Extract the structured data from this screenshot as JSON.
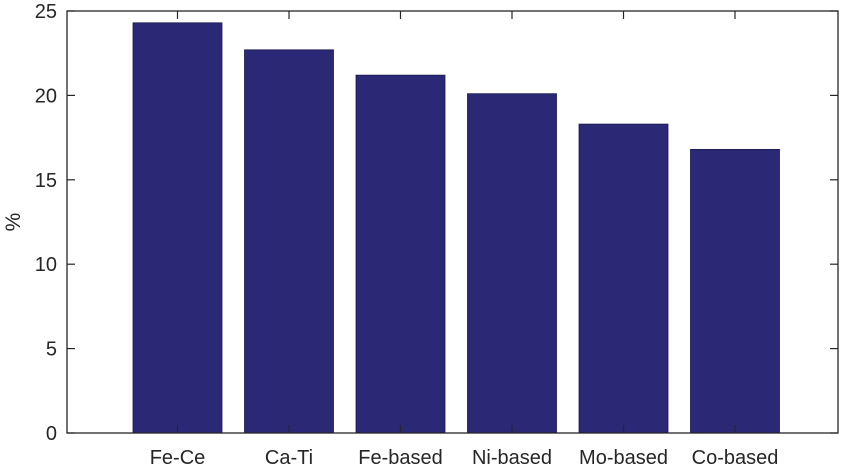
{
  "chart_data": {
    "type": "bar",
    "title": "",
    "xlabel": "",
    "ylabel": "%",
    "categories": [
      "Fe-Ce",
      "Ca-Ti",
      "Fe-based",
      "Ni-based",
      "Mo-based",
      "Co-based"
    ],
    "values": [
      24.3,
      22.7,
      21.2,
      20.1,
      18.3,
      16.8
    ],
    "ylim": [
      0,
      25
    ],
    "yticks": [
      0,
      5,
      10,
      15,
      20,
      25
    ],
    "grid": false,
    "bar_color": "#2b2875",
    "axis_color": "#262626"
  }
}
